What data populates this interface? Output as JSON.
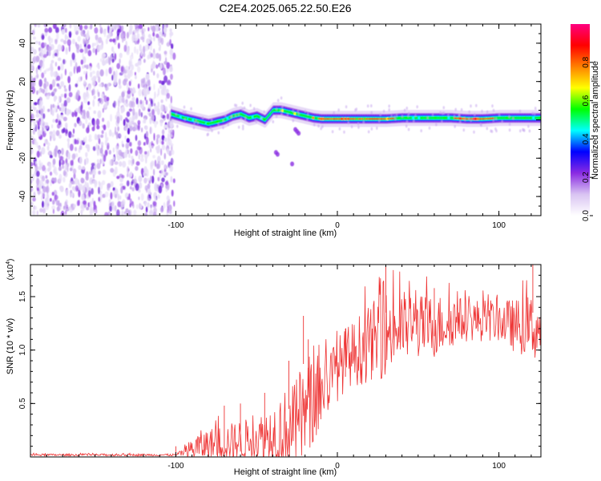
{
  "title": "C2E4.2025.065.22.50.E26",
  "chart_data": [
    {
      "type": "heatmap",
      "name": "spectrogram",
      "xlabel": "Height of straight line (km)",
      "ylabel": "Frequency (Hz)",
      "xlim": [
        -190,
        126
      ],
      "ylim": [
        -50,
        50
      ],
      "xticks": [
        -100,
        0,
        100
      ],
      "xtick_labels": [
        "-100",
        "0",
        "100"
      ],
      "yticks": [
        -40,
        -20,
        0,
        20,
        40
      ],
      "ytick_labels": [
        "-40",
        "-20",
        "0",
        "20",
        "40"
      ],
      "noise_region_x": [
        -190,
        -100
      ],
      "signal_region_x": [
        -103,
        126
      ],
      "signal_track": {
        "x": [
          -103,
          -95,
          -90,
          -85,
          -80,
          -75,
          -70,
          -65,
          -60,
          -55,
          -50,
          -45,
          -40,
          -35,
          -30,
          -25,
          -20,
          -15,
          -10,
          -5,
          0,
          10,
          20,
          30,
          40,
          50,
          60,
          70,
          80,
          90,
          100,
          110,
          126
        ],
        "freq_hz": [
          3,
          1,
          0,
          -1,
          -2,
          -1,
          0,
          2,
          3,
          1,
          2,
          0,
          5,
          5,
          4,
          3,
          2,
          1,
          0.5,
          0.5,
          0.5,
          0.5,
          0.5,
          0.5,
          1,
          1,
          1,
          1,
          0.5,
          0.5,
          1,
          1,
          1
        ]
      },
      "colorbar": {
        "label": "Normalized spectral amplitude",
        "range": [
          0,
          1
        ],
        "ticks": [
          0.0,
          0.2,
          0.4,
          0.6,
          0.8
        ],
        "tick_labels": [
          "0.0",
          "0.2",
          "0.4",
          "0.6",
          "0.8"
        ],
        "colors": [
          "#ffffff",
          "#d9c4f2",
          "#8a2be2",
          "#0000ff",
          "#00ffff",
          "#00ff00",
          "#ffff00",
          "#ff8000",
          "#ff0000",
          "#ff0080"
        ]
      }
    },
    {
      "type": "line",
      "name": "snr",
      "xlabel": "Height of straight line (km)",
      "ylabel": "SNR (10 * v/v)",
      "y_multiplier": "(x10",
      "y_multiplier_exp": "4",
      "y_multiplier_close": ")",
      "xlim": [
        -190,
        126
      ],
      "ylim": [
        0,
        1.8
      ],
      "xticks": [
        -100,
        0,
        100
      ],
      "xtick_labels": [
        "-100",
        "0",
        "100"
      ],
      "yticks": [
        0.5,
        1.0,
        1.5
      ],
      "ytick_labels": [
        "0.5",
        "1.0",
        "1.5"
      ],
      "color": "#ee3333",
      "envelope": {
        "x": [
          -190,
          -100,
          -96,
          -92,
          -88,
          -84,
          -80,
          -75,
          -70,
          -65,
          -60,
          -55,
          -50,
          -45,
          -40,
          -35,
          -30,
          -25,
          -20,
          -15,
          -10,
          -5,
          0,
          5,
          10,
          15,
          20,
          25,
          30,
          40,
          50,
          60,
          70,
          80,
          90,
          100,
          110,
          120,
          126
        ],
        "base": [
          0.02,
          0.02,
          0.04,
          0.07,
          0.1,
          0.12,
          0.13,
          0.14,
          0.15,
          0.16,
          0.17,
          0.18,
          0.2,
          0.22,
          0.25,
          0.28,
          0.3,
          0.33,
          0.45,
          0.55,
          0.65,
          0.75,
          0.85,
          0.95,
          1.0,
          1.05,
          1.1,
          1.15,
          1.2,
          1.25,
          1.25,
          1.25,
          1.3,
          1.3,
          1.3,
          1.3,
          1.25,
          1.25,
          1.2
        ],
        "amplitude": [
          0.01,
          0.01,
          0.03,
          0.08,
          0.13,
          0.15,
          0.15,
          0.16,
          0.18,
          0.18,
          0.2,
          0.2,
          0.2,
          0.25,
          0.3,
          0.38,
          0.38,
          0.45,
          0.45,
          0.4,
          0.35,
          0.3,
          0.3,
          0.3,
          0.3,
          0.35,
          0.35,
          0.4,
          0.4,
          0.35,
          0.3,
          0.3,
          0.25,
          0.2,
          0.2,
          0.2,
          0.25,
          0.3,
          0.3
        ]
      },
      "peaks": [
        {
          "x": -100,
          "y": 0.1
        },
        {
          "x": -70,
          "y": 0.48
        },
        {
          "x": -60,
          "y": 0.5
        },
        {
          "x": -45,
          "y": 0.6
        },
        {
          "x": -30,
          "y": 0.9
        },
        {
          "x": -21,
          "y": 1.32
        },
        {
          "x": -18,
          "y": 1.1
        },
        {
          "x": 5,
          "y": 1.2
        },
        {
          "x": 30,
          "y": 1.8
        },
        {
          "x": 60,
          "y": 1.58
        },
        {
          "x": 121,
          "y": 1.8
        }
      ]
    }
  ]
}
